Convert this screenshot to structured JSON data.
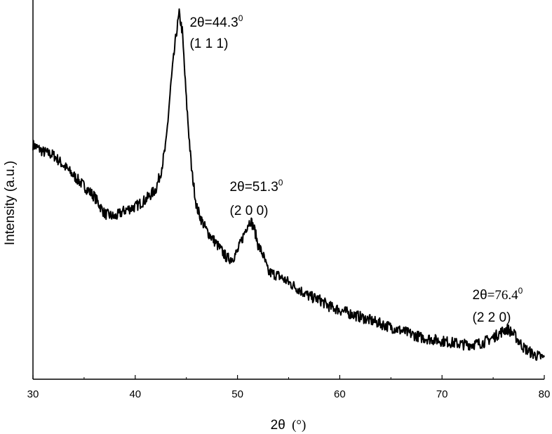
{
  "chart_data": {
    "type": "line",
    "title": "",
    "xlabel": "2θ (°)",
    "xlabel_main": "2θ",
    "xlabel_unit": "(°)",
    "ylabel": "Intensity (a.u.)",
    "xlim": [
      30,
      80
    ],
    "ylim": [
      0,
      100
    ],
    "y_tick_labels_shown": false,
    "grid": false,
    "legend": "none",
    "line_color": "#000000",
    "xticks": [
      30,
      40,
      50,
      60,
      70,
      80
    ],
    "xtick_labels": [
      "30",
      "40",
      "50",
      "60",
      "70",
      "80"
    ],
    "series": [
      {
        "x": [
          30,
          31,
          32,
          33,
          34,
          35,
          36,
          37,
          38,
          39,
          40,
          41,
          42,
          42.5,
          43,
          43.5,
          44,
          44.3,
          44.6,
          45,
          45.5,
          46,
          46.5,
          47,
          48,
          49,
          49.5,
          50,
          50.5,
          51,
          51.3,
          51.7,
          52,
          52.5,
          53,
          54,
          55,
          56,
          57,
          58,
          59,
          60,
          61,
          62,
          63,
          64,
          65,
          66,
          67,
          68,
          69,
          70,
          71,
          72,
          73,
          74,
          75,
          75.5,
          76,
          76.4,
          77,
          77.5,
          78,
          79,
          80
        ],
        "y": [
          62,
          60,
          59,
          56,
          53,
          50,
          47,
          42,
          41,
          43,
          44,
          46,
          49,
          54,
          62,
          80,
          94,
          100,
          95,
          75,
          55,
          44,
          40,
          37,
          33,
          29,
          29,
          31,
          35,
          39,
          40,
          37,
          33,
          30,
          25,
          24,
          22,
          20,
          18,
          17,
          15,
          14,
          13,
          12,
          11,
          10,
          9,
          8,
          7,
          6,
          5.5,
          5,
          4.5,
          4,
          4,
          4.5,
          6,
          7,
          8,
          8.5,
          7,
          5,
          3,
          1,
          0
        ]
      }
    ],
    "annotations": [
      {
        "x": 44.3,
        "theta_text": "2θ",
        "value_text": "=44.3",
        "sup": "0",
        "miller": "(1 1 1)"
      },
      {
        "x": 51.3,
        "theta_text": "2θ",
        "value_text": "=51.3",
        "sup": "0",
        "miller": "(2 0 0)"
      },
      {
        "x": 76.4,
        "theta_text": "2θ",
        "value_text": "=76.4",
        "sup": "0",
        "miller": "(2 2 0)"
      }
    ]
  }
}
